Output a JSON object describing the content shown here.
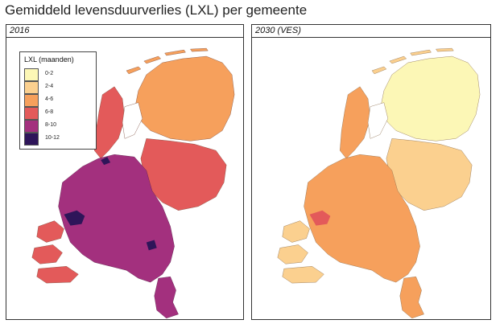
{
  "title": "Gemiddeld levensduurverlies (LXL) per gemeente",
  "panels": [
    {
      "label": "2016"
    },
    {
      "label": "2030 (VES)"
    }
  ],
  "legend": {
    "title": "LXL (maanden)",
    "items": [
      {
        "label": "0-2",
        "color": "#fcf7b6"
      },
      {
        "label": "2-4",
        "color": "#fbd08f"
      },
      {
        "label": "4-6",
        "color": "#f6a05c"
      },
      {
        "label": "6-8",
        "color": "#e35a5a"
      },
      {
        "label": "8-10",
        "color": "#a3307e"
      },
      {
        "label": "10-12",
        "color": "#2e1559"
      }
    ]
  }
}
